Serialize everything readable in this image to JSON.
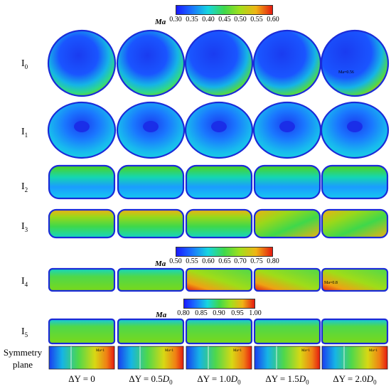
{
  "colorbars": [
    {
      "label": "Ma",
      "ticks": [
        "0.30",
        "0.35",
        "0.40",
        "0.45",
        "0.50",
        "0.55",
        "0.60"
      ]
    },
    {
      "label": "Ma",
      "ticks": [
        "0.50",
        "0.55",
        "0.60",
        "0.65",
        "0.70",
        "0.75",
        "0.80"
      ]
    },
    {
      "label": "Ma",
      "ticks": [
        "0.80",
        "0.85",
        "0.90",
        "0.95",
        "1.00"
      ]
    }
  ],
  "rows": [
    {
      "main": "I",
      "sub": "0"
    },
    {
      "main": "I",
      "sub": "1"
    },
    {
      "main": "I",
      "sub": "2"
    },
    {
      "main": "I",
      "sub": "3"
    },
    {
      "main": "I",
      "sub": "4"
    },
    {
      "main": "I",
      "sub": "5"
    }
  ],
  "symmetry_label": [
    "Symmetry",
    "plane"
  ],
  "columns": [
    {
      "prefix": "ΔY = ",
      "value": "0",
      "d": ""
    },
    {
      "prefix": "ΔY = ",
      "value": "0.5",
      "d": "D",
      "dsub": "0"
    },
    {
      "prefix": "ΔY = ",
      "value": "1.0",
      "d": "D",
      "dsub": "0"
    },
    {
      "prefix": "ΔY = ",
      "value": "1.5",
      "d": "D",
      "dsub": "0"
    },
    {
      "prefix": "ΔY = ",
      "value": "2.0",
      "d": "D",
      "dsub": "0"
    }
  ],
  "annotations": {
    "i0_last": "Ma=0.56",
    "i4_last": "Ma=0.8",
    "sym": "Ma=1"
  },
  "colors": {
    "blue": "#1a3cff",
    "cyan": "#15d6e0",
    "green": "#4fd21a",
    "yellow": "#e8e015",
    "red": "#e51a10"
  }
}
